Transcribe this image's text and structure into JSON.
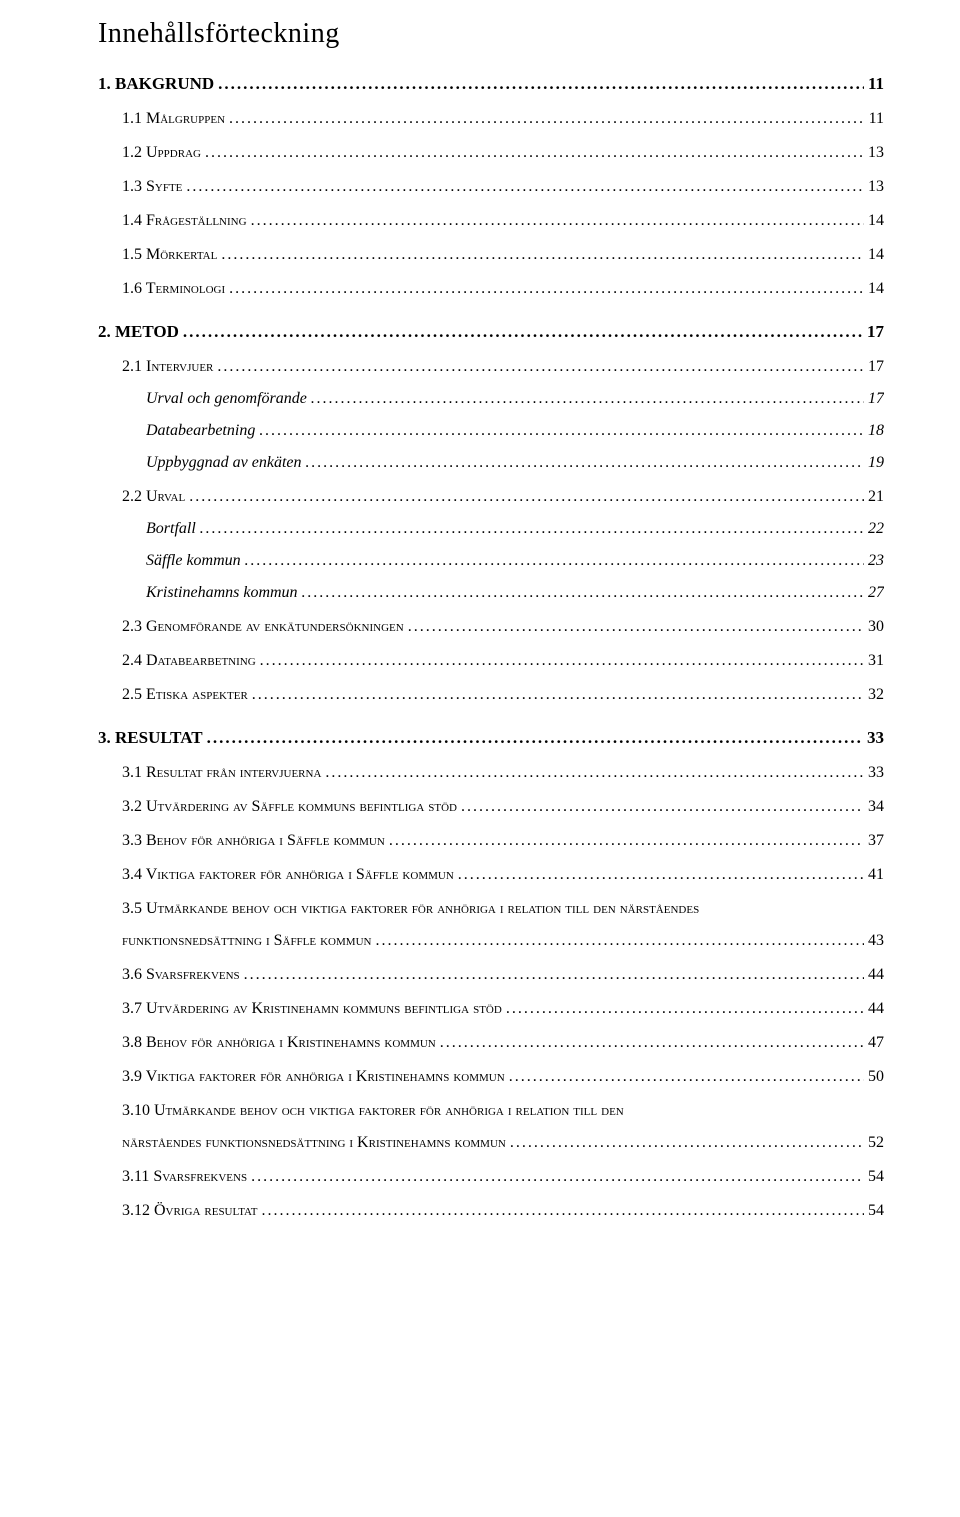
{
  "heading": "Innehållsförteckning",
  "entries": [
    {
      "level": 1,
      "label": "1. BAKGRUND",
      "page": "11"
    },
    {
      "level": 2,
      "label": "1.1 Målgruppen",
      "page": "11"
    },
    {
      "level": 2,
      "label": "1.2 Uppdrag",
      "page": "13"
    },
    {
      "level": 2,
      "label": "1.3 Syfte",
      "page": "13"
    },
    {
      "level": 2,
      "label": "1.4 Frågeställning",
      "page": "14"
    },
    {
      "level": 2,
      "label": "1.5 Mörkertal",
      "page": "14"
    },
    {
      "level": 2,
      "label": "1.6 Terminologi",
      "page": "14"
    },
    {
      "level": 1,
      "label": "2. METOD",
      "page": "17"
    },
    {
      "level": 2,
      "label": "2.1 Intervjuer",
      "page": "17"
    },
    {
      "level": 3,
      "label": "Urval och genomförande",
      "page": "17"
    },
    {
      "level": 3,
      "label": "Databearbetning",
      "page": "18"
    },
    {
      "level": 3,
      "label": "Uppbyggnad av enkäten",
      "page": "19"
    },
    {
      "level": 2,
      "label": "2.2 Urval",
      "page": "21"
    },
    {
      "level": 3,
      "label": "Bortfall",
      "page": "22"
    },
    {
      "level": 3,
      "label": "Säffle kommun",
      "page": "23"
    },
    {
      "level": 3,
      "label": "Kristinehamns kommun",
      "page": "27"
    },
    {
      "level": 2,
      "label": "2.3 Genomförande av enkätundersökningen",
      "page": "30"
    },
    {
      "level": 2,
      "label": "2.4 Databearbetning",
      "page": "31"
    },
    {
      "level": 2,
      "label": "2.5 Etiska aspekter",
      "page": "32"
    },
    {
      "level": 1,
      "label": "3. RESULTAT",
      "page": "33"
    },
    {
      "level": 2,
      "label": "3.1 Resultat från intervjuerna",
      "page": "33"
    },
    {
      "level": 2,
      "label": "3.2 Utvärdering av Säffle kommuns befintliga stöd",
      "page": "34"
    },
    {
      "level": 2,
      "label": "3.3 Behov för anhöriga i Säffle kommun",
      "page": "37"
    },
    {
      "level": 2,
      "label": "3.4 Viktiga faktorer för anhöriga i Säffle kommun",
      "page": "41"
    },
    {
      "level": 2,
      "wrap": true,
      "lines": [
        "3.5 Utmärkande behov och viktiga faktorer för anhöriga i relation till den närståendes",
        "funktionsnedsättning i Säffle kommun"
      ],
      "page": "43"
    },
    {
      "level": 2,
      "label": "3.6 Svarsfrekvens",
      "page": "44"
    },
    {
      "level": 2,
      "label": "3.7 Utvärdering av Kristinehamn kommuns befintliga stöd",
      "page": "44"
    },
    {
      "level": 2,
      "label": "3.8 Behov för anhöriga i Kristinehamns kommun",
      "page": "47"
    },
    {
      "level": 2,
      "label": "3.9 Viktiga faktorer för anhöriga i Kristinehamns kommun",
      "page": "50"
    },
    {
      "level": 2,
      "wrap": true,
      "lines": [
        "3.10 Utmärkande behov och viktiga faktorer för anhöriga i relation till den",
        "närståendes funktionsnedsättning i Kristinehamns kommun"
      ],
      "page": "52"
    },
    {
      "level": 2,
      "label": "3.11 Svarsfrekvens",
      "page": "54"
    },
    {
      "level": 2,
      "label": "3.12 Övriga resultat",
      "page": "54"
    }
  ]
}
